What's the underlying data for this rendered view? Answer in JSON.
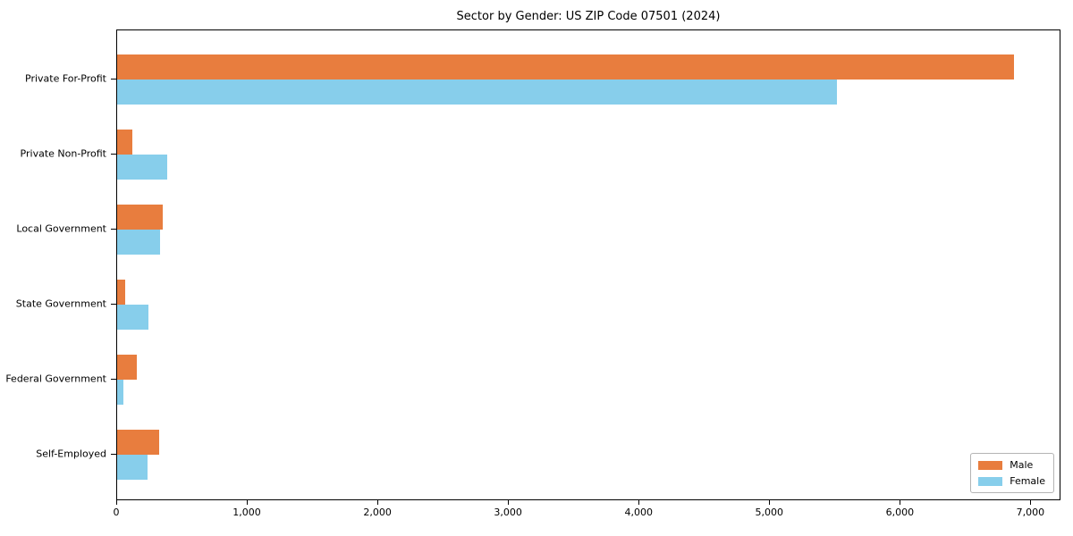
{
  "chart_data": {
    "type": "bar",
    "orientation": "horizontal",
    "title": "Sector by Gender: US ZIP Code 07501 (2024)",
    "categories": [
      "Private For-Profit",
      "Private Non-Profit",
      "Local Government",
      "State Government",
      "Federal Government",
      "Self-Employed"
    ],
    "series": [
      {
        "name": "Male",
        "color": "#e87d3e",
        "values": [
          6880,
          120,
          350,
          60,
          150,
          320
        ]
      },
      {
        "name": "Female",
        "color": "#87ceeb",
        "values": [
          5520,
          385,
          330,
          240,
          50,
          230
        ]
      }
    ],
    "xlabel": "",
    "ylabel": "",
    "xlim": [
      0,
      7230
    ],
    "x_ticks": [
      0,
      1000,
      2000,
      3000,
      4000,
      5000,
      6000,
      7000
    ],
    "x_tick_labels": [
      "0",
      "1,000",
      "2,000",
      "3,000",
      "4,000",
      "5,000",
      "6,000",
      "7,000"
    ],
    "legend_position": "lower right",
    "grid": false
  }
}
